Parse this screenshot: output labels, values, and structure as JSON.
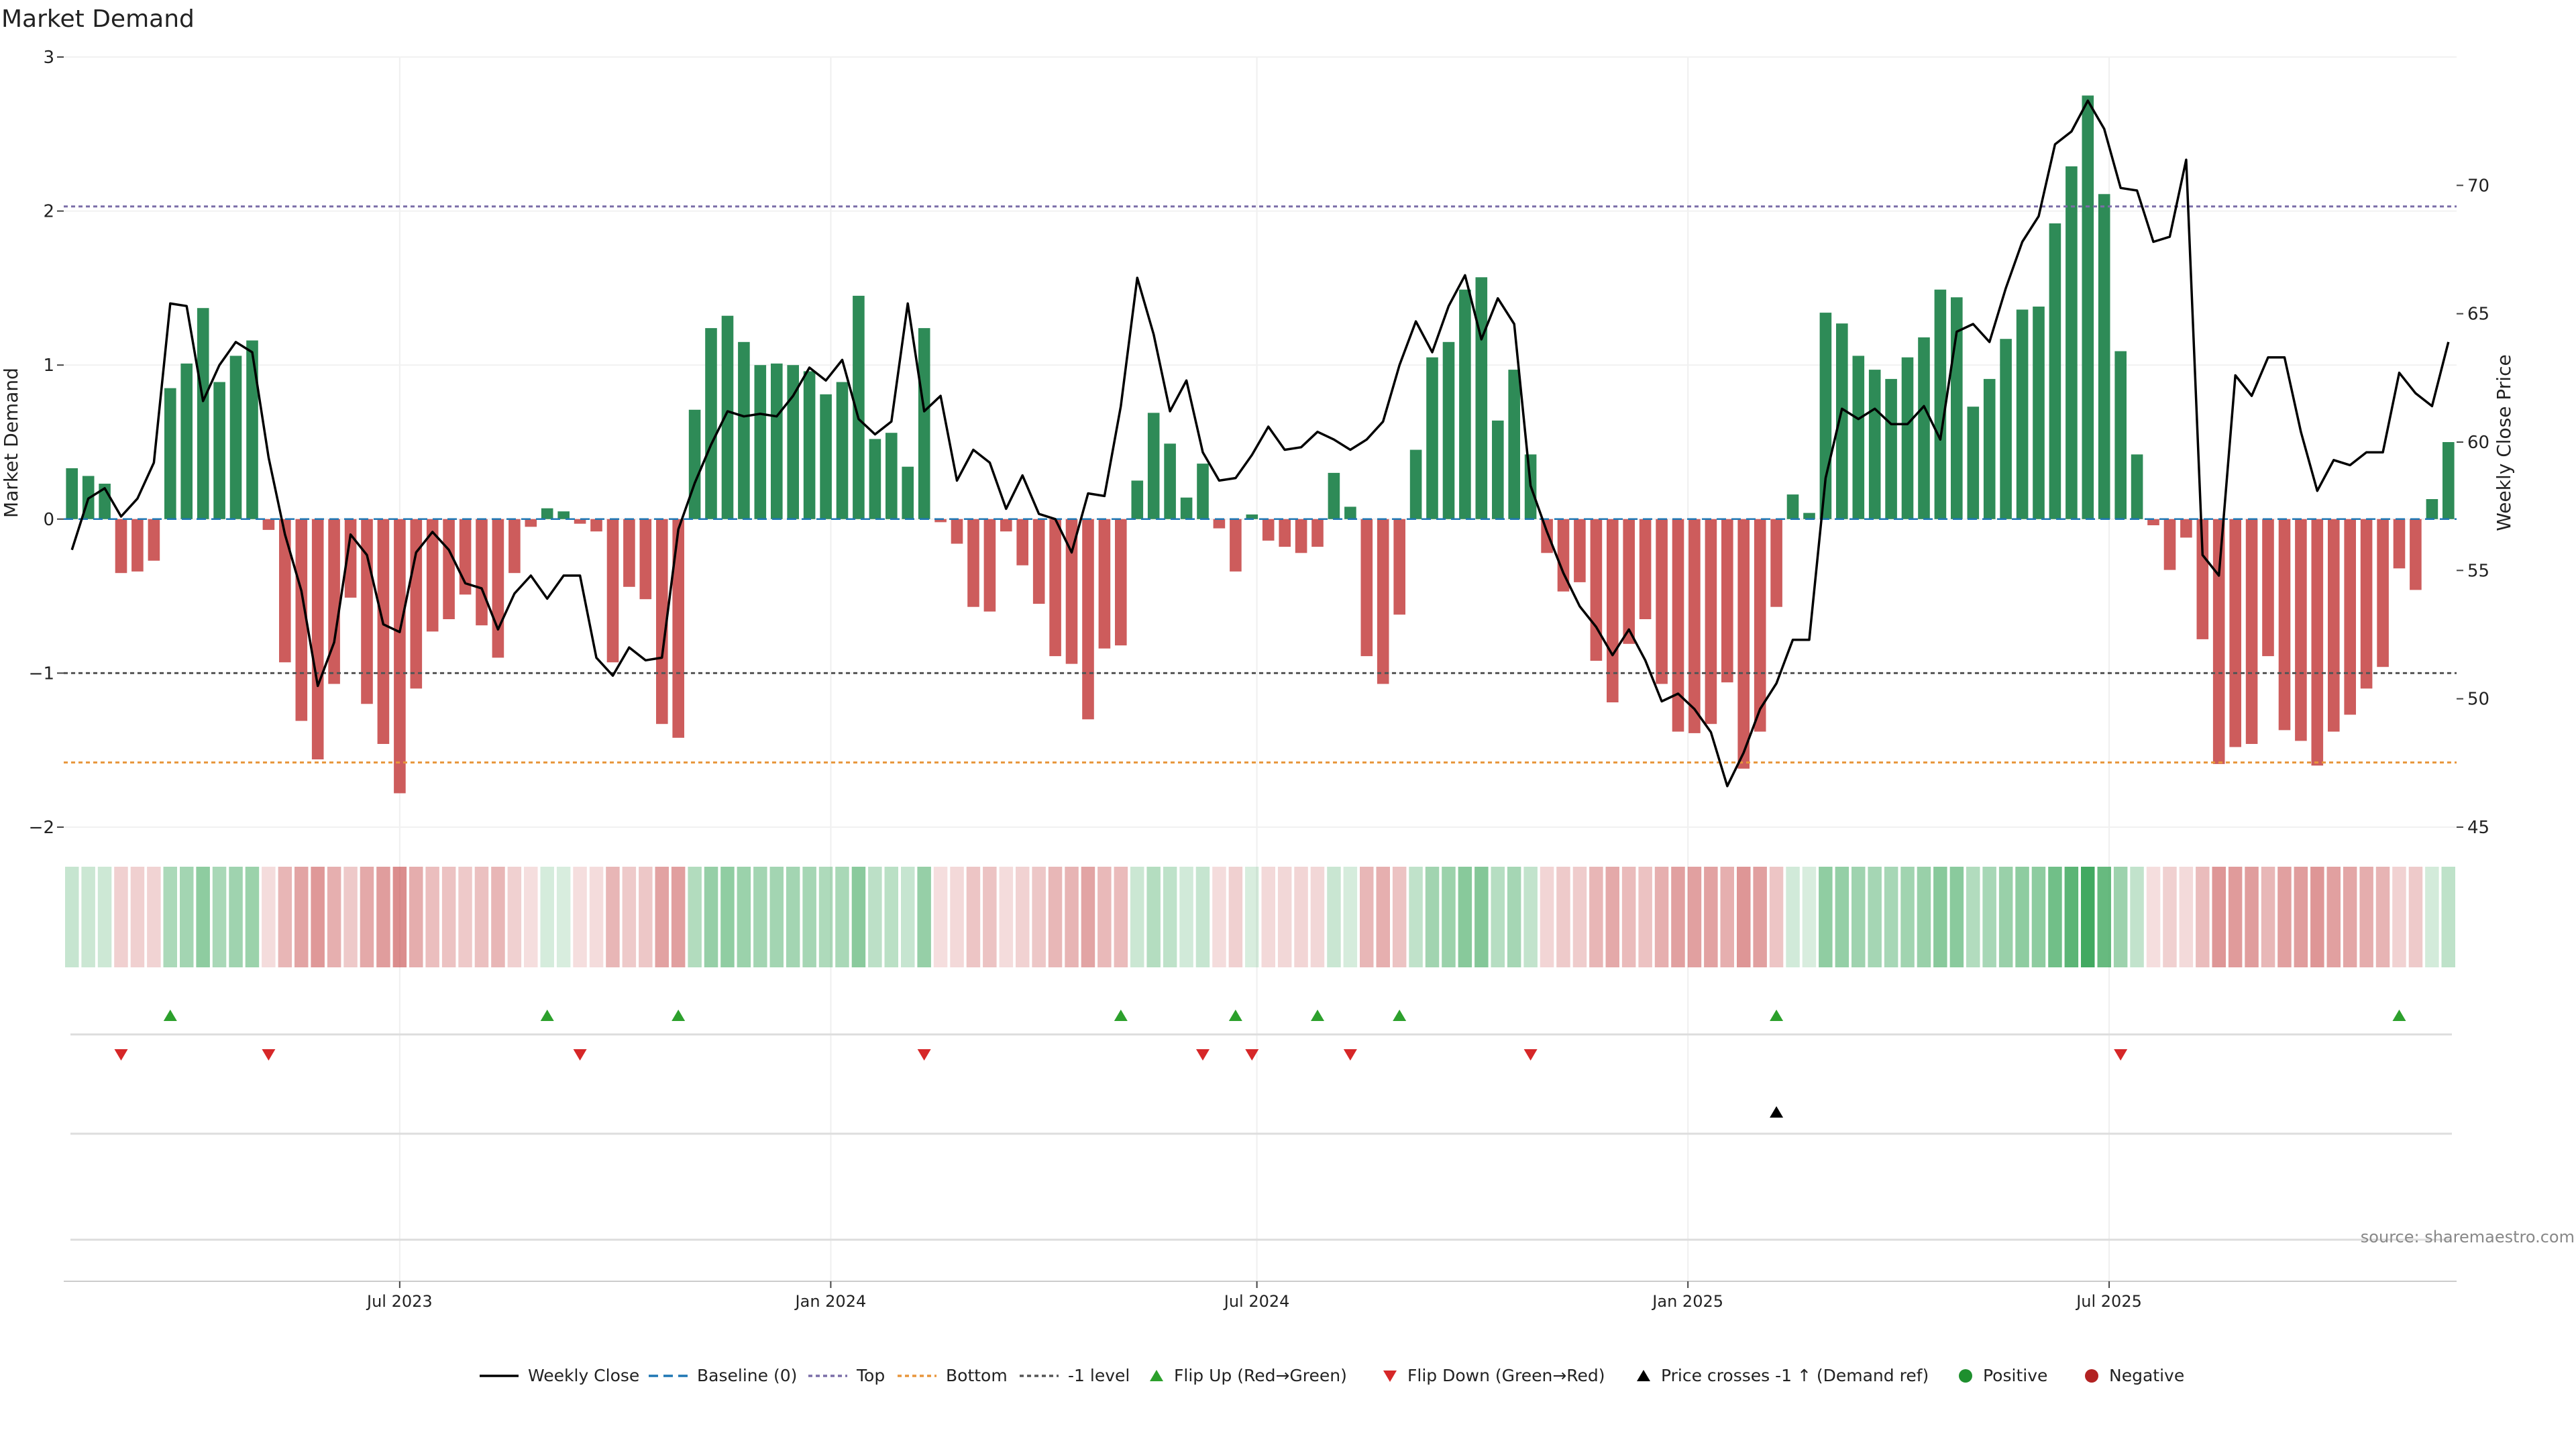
{
  "chart_data": {
    "type": "bar",
    "title": "Market Demand",
    "ylabel": "Market Demand",
    "y2label": "Weekly Close Price",
    "source": "source: sharemaestro.com",
    "ylim": [
      -2,
      3
    ],
    "y2lim": [
      45,
      75
    ],
    "yticks": [
      3,
      2,
      1,
      0,
      -1,
      -2
    ],
    "yticklabels": [
      "3",
      "2",
      "1",
      "0",
      "−1",
      "−2"
    ],
    "y2ticks": [
      70,
      65,
      60,
      55,
      50,
      45
    ],
    "y2ticklabels": [
      "70",
      "65",
      "60",
      "55",
      "50",
      "45"
    ],
    "xticklabels": [
      "Jul 2023",
      "Jan 2024",
      "Jul 2024",
      "Jan 2025",
      "Jul 2025"
    ],
    "xtick_positions_week": [
      20.5,
      46.8,
      72.8,
      99.1,
      124.8
    ],
    "levels": {
      "top": 2.03,
      "bottom": -1.58,
      "minus_one": -1.0,
      "baseline": 0
    },
    "colors": {
      "positive": "#2e8b57",
      "negative": "#cd5c5c",
      "price": "#000000",
      "flip_up": "#2ca02c",
      "flip_down": "#d62728",
      "top": "#7b6ea8",
      "bottom": "#e8963b",
      "minus_one": "#555555"
    },
    "demand": [
      0.33,
      0.28,
      0.23,
      -0.35,
      -0.34,
      -0.27,
      0.85,
      1.01,
      1.37,
      0.89,
      1.06,
      1.16,
      -0.07,
      -0.93,
      -1.31,
      -1.56,
      -1.07,
      -0.51,
      -1.2,
      -1.46,
      -1.78,
      -1.1,
      -0.73,
      -0.65,
      -0.49,
      -0.69,
      -0.9,
      -0.35,
      -0.05,
      0.07,
      0.05,
      -0.03,
      -0.08,
      -0.93,
      -0.44,
      -0.52,
      -1.33,
      -1.42,
      0.71,
      1.24,
      1.32,
      1.15,
      1.0,
      1.01,
      1.0,
      0.96,
      0.81,
      0.89,
      1.45,
      0.52,
      0.56,
      0.34,
      1.24,
      -0.02,
      -0.16,
      -0.57,
      -0.6,
      -0.08,
      -0.3,
      -0.55,
      -0.89,
      -0.94,
      -1.3,
      -0.84,
      -0.82,
      0.25,
      0.69,
      0.49,
      0.14,
      0.36,
      -0.06,
      -0.34,
      0.03,
      -0.14,
      -0.18,
      -0.22,
      -0.18,
      0.3,
      0.08,
      -0.89,
      -1.07,
      -0.62,
      0.45,
      1.05,
      1.15,
      1.49,
      1.57,
      0.64,
      0.97,
      0.42,
      -0.22,
      -0.47,
      -0.41,
      -0.92,
      -1.19,
      -0.81,
      -0.65,
      -1.07,
      -1.38,
      -1.39,
      -1.33,
      -1.06,
      -1.62,
      -1.38,
      -0.57,
      0.16,
      0.04,
      1.34,
      1.27,
      1.06,
      0.97,
      0.91,
      1.05,
      1.18,
      1.49,
      1.44,
      0.73,
      0.91,
      1.17,
      1.36,
      1.38,
      1.92,
      2.29,
      2.75,
      2.11,
      1.09,
      0.42,
      -0.04,
      -0.33,
      -0.12,
      -0.78,
      -1.59,
      -1.48,
      -1.46,
      -0.89,
      -1.37,
      -1.44,
      -1.6,
      -1.38,
      -1.27,
      -1.1,
      -0.96,
      -0.32,
      -0.46,
      0.13,
      0.5
    ],
    "price": [
      55.8,
      57.8,
      58.2,
      57.1,
      57.8,
      59.2,
      65.4,
      65.3,
      61.6,
      63.0,
      63.9,
      63.5,
      59.4,
      56.4,
      54.2,
      50.5,
      52.2,
      56.4,
      55.6,
      52.9,
      52.6,
      55.7,
      56.5,
      55.8,
      54.5,
      54.3,
      52.7,
      54.1,
      54.8,
      53.9,
      54.8,
      54.8,
      51.6,
      50.9,
      52.0,
      51.5,
      51.6,
      56.6,
      58.4,
      59.9,
      61.2,
      61.0,
      61.1,
      61.0,
      61.8,
      62.9,
      62.4,
      63.2,
      60.9,
      60.3,
      60.8,
      65.4,
      61.2,
      61.8,
      58.5,
      59.7,
      59.2,
      57.4,
      58.7,
      57.2,
      57.0,
      55.7,
      58.0,
      57.9,
      61.4,
      66.4,
      64.2,
      61.2,
      62.4,
      59.6,
      58.5,
      58.6,
      59.5,
      60.6,
      59.7,
      59.8,
      60.4,
      60.1,
      59.7,
      60.1,
      60.8,
      63.0,
      64.7,
      63.5,
      65.3,
      66.5,
      64.0,
      65.6,
      64.6,
      58.3,
      56.5,
      54.9,
      53.6,
      52.8,
      51.7,
      52.7,
      51.5,
      49.9,
      50.2,
      49.6,
      48.7,
      46.6,
      47.9,
      49.6,
      50.6,
      52.3,
      52.3,
      58.6,
      61.3,
      60.9,
      61.3,
      60.7,
      60.7,
      61.4,
      60.1,
      64.3,
      64.6,
      63.9,
      66.0,
      67.8,
      68.8,
      71.6,
      72.1,
      73.3,
      72.2,
      69.9,
      69.8,
      67.8,
      68.0,
      71.0,
      55.6,
      54.8,
      62.6,
      61.8,
      63.3,
      63.3,
      60.4,
      58.1,
      59.3,
      59.1,
      59.6,
      59.6,
      62.7,
      61.9,
      61.4,
      63.9
    ],
    "flip_up_weeks": [
      6,
      29,
      37,
      64,
      71,
      76,
      81,
      104,
      142
    ],
    "flip_down_weeks": [
      3,
      12,
      31,
      52,
      69,
      72,
      78,
      89,
      125
    ],
    "price_cross_weeks": [
      104
    ],
    "legend": [
      "Weekly Close",
      "Baseline (0)",
      "Top",
      "Bottom",
      "-1 level",
      "Flip Up (Red→Green)",
      "Flip Down (Green→Red)",
      "Price crosses -1 ↑ (Demand ref)",
      "Positive",
      "Negative"
    ]
  }
}
